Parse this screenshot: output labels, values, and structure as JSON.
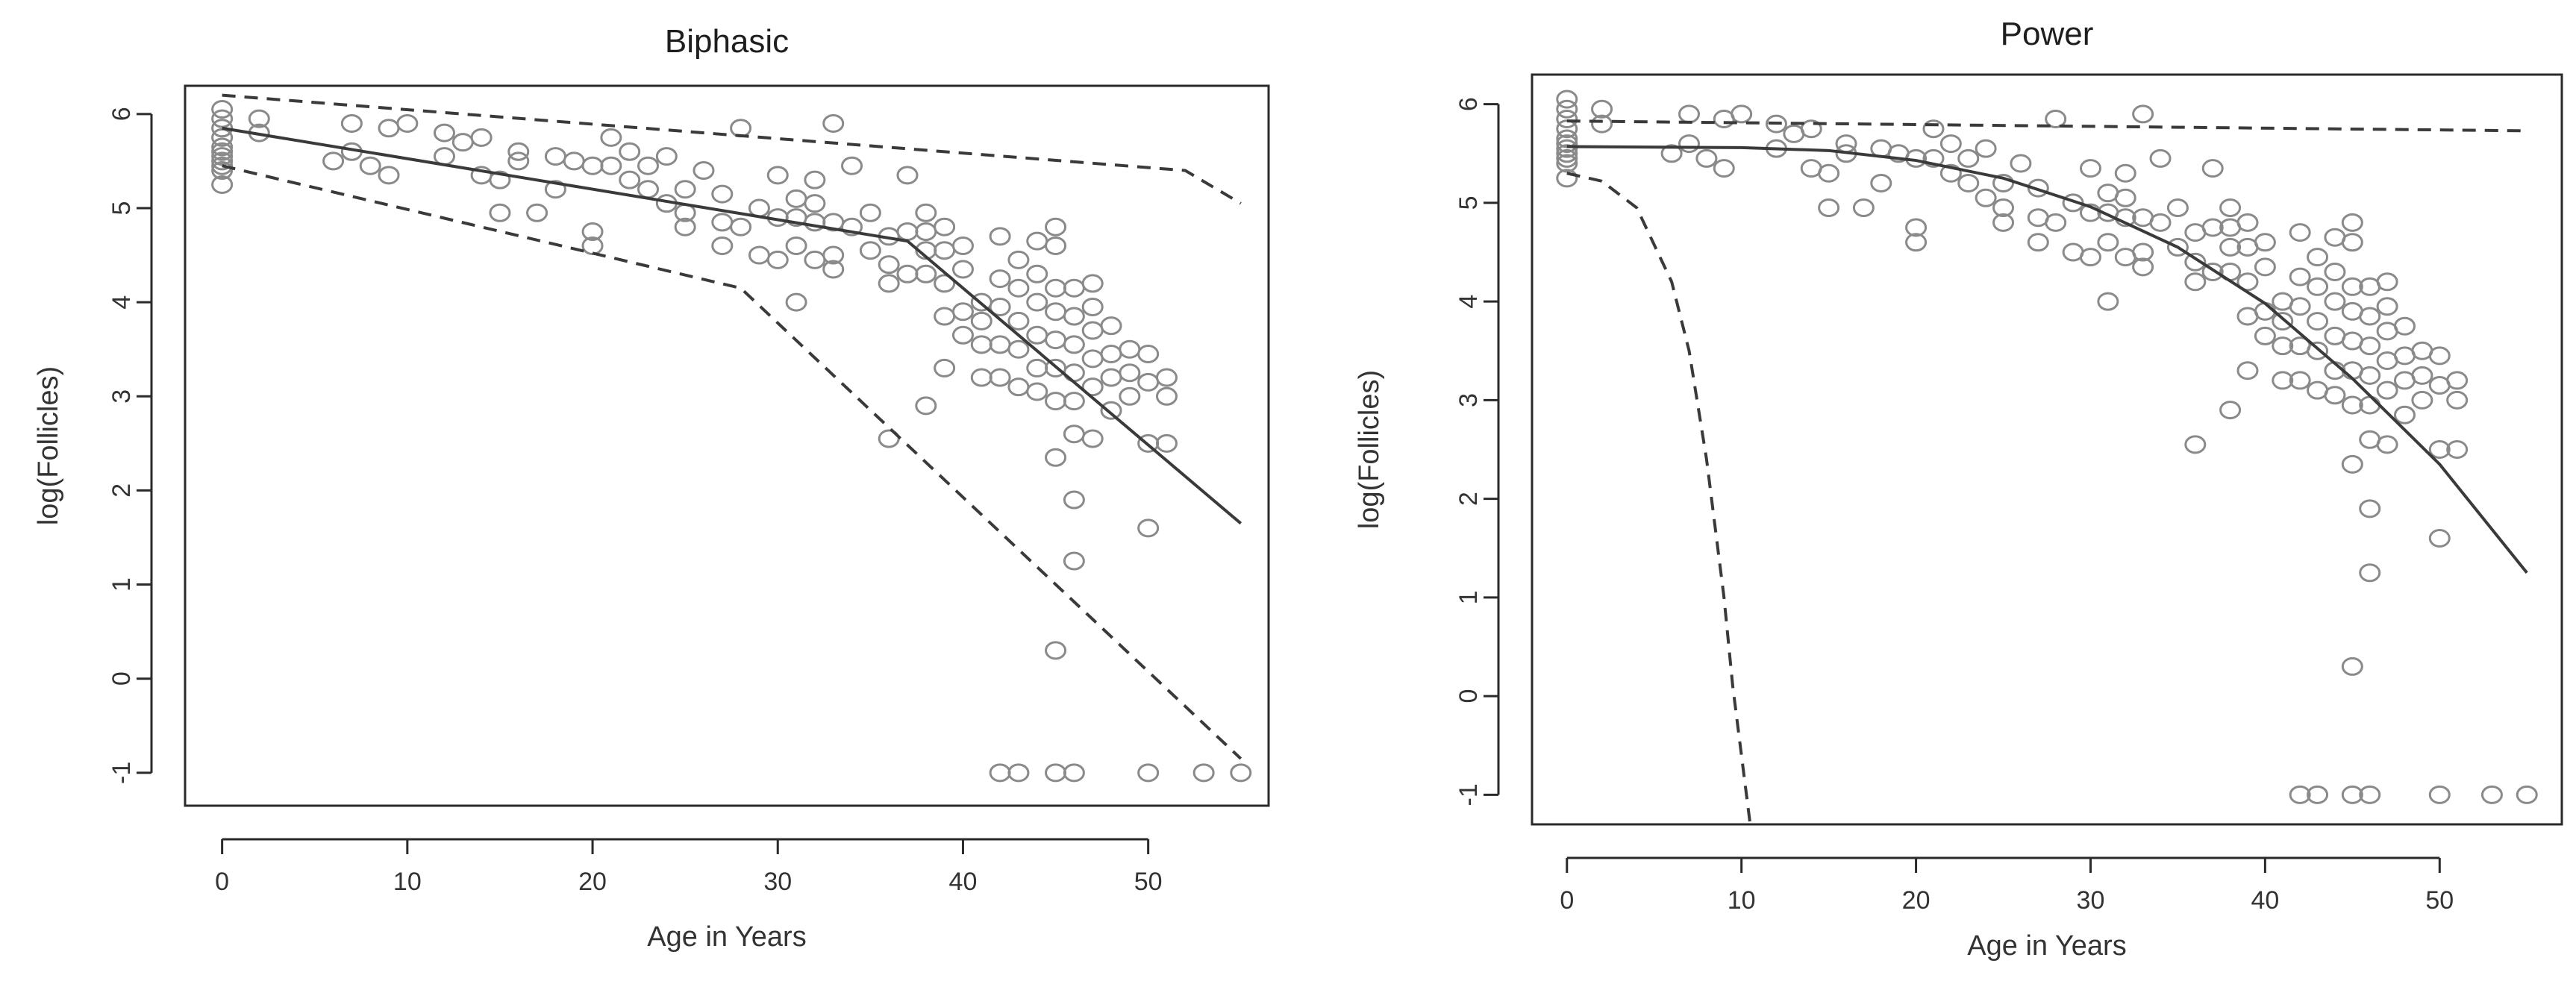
{
  "chart_data": [
    {
      "type": "scatter",
      "title": "Biphasic",
      "xlabel": "Age in Years",
      "ylabel": "log(Follicles)",
      "xlim": [
        -2,
        56.5
      ],
      "ylim": [
        -1.35,
        6.3
      ],
      "xticks": [
        0,
        10,
        20,
        30,
        40,
        50
      ],
      "yticks": [
        -1,
        0,
        1,
        2,
        3,
        4,
        5,
        6
      ],
      "grid": false,
      "legend": "none",
      "points": {
        "x": [
          0,
          0,
          0,
          0,
          0,
          0,
          0,
          0,
          0,
          0,
          0,
          2,
          2,
          6,
          7,
          7,
          8,
          9,
          9,
          10,
          12,
          12,
          13,
          14,
          14,
          15,
          15,
          16,
          16,
          17,
          18,
          18,
          19,
          20,
          20,
          20,
          21,
          21,
          22,
          22,
          23,
          23,
          24,
          24,
          25,
          25,
          25,
          26,
          27,
          27,
          27,
          28,
          28,
          29,
          29,
          30,
          30,
          30,
          31,
          31,
          31,
          31,
          32,
          32,
          32,
          32,
          33,
          33,
          33,
          33,
          34,
          34,
          35,
          35,
          36,
          36,
          36,
          37,
          37,
          37,
          38,
          38,
          38,
          38,
          39,
          39,
          39,
          39,
          39,
          40,
          40,
          40,
          40,
          41,
          41,
          41,
          41,
          42,
          42,
          42,
          42,
          42,
          43,
          43,
          43,
          43,
          43,
          44,
          44,
          44,
          44,
          44,
          44,
          45,
          45,
          45,
          45,
          45,
          45,
          45,
          45,
          46,
          46,
          46,
          46,
          46,
          46,
          46,
          47,
          47,
          47,
          47,
          47,
          47,
          48,
          48,
          48,
          48,
          49,
          49,
          49,
          50,
          50,
          50,
          50,
          51,
          51,
          51,
          36,
          38,
          45,
          46,
          42,
          43,
          45,
          46,
          50,
          53,
          55
        ],
        "y": [
          6.05,
          5.95,
          5.85,
          5.75,
          5.65,
          5.6,
          5.55,
          5.5,
          5.45,
          5.4,
          5.25,
          5.95,
          5.8,
          5.5,
          5.9,
          5.6,
          5.45,
          5.85,
          5.35,
          5.9,
          5.8,
          5.55,
          5.7,
          5.75,
          5.35,
          5.3,
          4.95,
          5.6,
          5.5,
          4.95,
          5.55,
          5.2,
          5.5,
          5.45,
          4.75,
          4.6,
          5.75,
          5.45,
          5.6,
          5.3,
          5.45,
          5.2,
          5.55,
          5.05,
          5.2,
          4.95,
          4.8,
          5.4,
          5.15,
          4.85,
          4.6,
          5.85,
          4.8,
          5.0,
          4.5,
          5.35,
          4.9,
          4.45,
          5.1,
          4.9,
          4.6,
          4.0,
          5.3,
          5.05,
          4.85,
          4.45,
          5.9,
          4.85,
          4.5,
          4.35,
          5.45,
          4.8,
          4.95,
          4.55,
          4.7,
          4.4,
          4.2,
          5.35,
          4.75,
          4.3,
          4.95,
          4.75,
          4.55,
          4.3,
          4.8,
          4.55,
          4.2,
          3.85,
          3.3,
          4.6,
          4.35,
          3.9,
          3.65,
          4.0,
          3.8,
          3.55,
          3.2,
          4.7,
          4.25,
          3.95,
          3.55,
          3.2,
          4.45,
          4.15,
          3.8,
          3.5,
          3.1,
          4.65,
          4.3,
          4.0,
          3.65,
          3.3,
          3.05,
          4.8,
          4.6,
          4.15,
          3.9,
          3.6,
          3.3,
          2.95,
          2.35,
          4.15,
          3.85,
          3.55,
          3.25,
          2.95,
          2.6,
          1.25,
          4.2,
          3.95,
          3.7,
          3.4,
          3.1,
          2.55,
          3.75,
          3.45,
          3.2,
          2.85,
          3.5,
          3.25,
          3.0,
          3.45,
          3.15,
          2.5,
          1.6,
          3.2,
          3.0,
          2.5,
          2.55,
          2.9,
          0.3,
          1.9,
          -1.0,
          -1.0,
          -1.0,
          -1.0,
          -1.0,
          -1.0,
          -1.0
        ]
      },
      "fit_line": {
        "x": [
          0,
          37,
          55
        ],
        "y": [
          5.85,
          4.65,
          1.65
        ]
      },
      "upper_band": {
        "x": [
          0,
          52,
          55
        ],
        "y": [
          6.2,
          5.4,
          5.05
        ]
      },
      "lower_band": {
        "x": [
          0,
          28,
          55
        ],
        "y": [
          5.45,
          4.15,
          -0.85
        ]
      }
    },
    {
      "type": "scatter",
      "title": "Power",
      "xlabel": "Age in Years",
      "ylabel": "log(Follicles)",
      "xlim": [
        -2,
        57
      ],
      "ylim": [
        -1.3,
        6.3
      ],
      "xticks": [
        0,
        10,
        20,
        30,
        40,
        50
      ],
      "yticks": [
        -1,
        0,
        1,
        2,
        3,
        4,
        5,
        6
      ],
      "grid": false,
      "legend": "none",
      "points": {
        "x": [
          0,
          0,
          0,
          0,
          0,
          0,
          0,
          0,
          0,
          0,
          0,
          2,
          2,
          6,
          7,
          7,
          8,
          9,
          9,
          10,
          12,
          12,
          13,
          14,
          14,
          15,
          15,
          16,
          16,
          17,
          18,
          18,
          19,
          20,
          20,
          20,
          21,
          21,
          22,
          22,
          23,
          23,
          24,
          24,
          25,
          25,
          25,
          26,
          27,
          27,
          27,
          28,
          28,
          29,
          29,
          30,
          30,
          30,
          31,
          31,
          31,
          31,
          32,
          32,
          32,
          32,
          33,
          33,
          33,
          33,
          34,
          34,
          35,
          35,
          36,
          36,
          36,
          37,
          37,
          37,
          38,
          38,
          38,
          38,
          39,
          39,
          39,
          39,
          39,
          40,
          40,
          40,
          40,
          41,
          41,
          41,
          41,
          42,
          42,
          42,
          42,
          42,
          43,
          43,
          43,
          43,
          43,
          44,
          44,
          44,
          44,
          44,
          44,
          45,
          45,
          45,
          45,
          45,
          45,
          45,
          45,
          46,
          46,
          46,
          46,
          46,
          46,
          46,
          47,
          47,
          47,
          47,
          47,
          47,
          48,
          48,
          48,
          48,
          49,
          49,
          49,
          50,
          50,
          50,
          50,
          51,
          51,
          51,
          36,
          38,
          45,
          46,
          42,
          43,
          45,
          46,
          50,
          53,
          55
        ],
        "y": [
          6.05,
          5.95,
          5.85,
          5.75,
          5.65,
          5.6,
          5.55,
          5.5,
          5.45,
          5.4,
          5.25,
          5.95,
          5.8,
          5.5,
          5.9,
          5.6,
          5.45,
          5.85,
          5.35,
          5.9,
          5.8,
          5.55,
          5.7,
          5.75,
          5.35,
          5.3,
          4.95,
          5.6,
          5.5,
          4.95,
          5.55,
          5.2,
          5.5,
          5.45,
          4.75,
          4.6,
          5.75,
          5.45,
          5.6,
          5.3,
          5.45,
          5.2,
          5.55,
          5.05,
          5.2,
          4.95,
          4.8,
          5.4,
          5.15,
          4.85,
          4.6,
          5.85,
          4.8,
          5.0,
          4.5,
          5.35,
          4.9,
          4.45,
          5.1,
          4.9,
          4.6,
          4.0,
          5.3,
          5.05,
          4.85,
          4.45,
          5.9,
          4.85,
          4.5,
          4.35,
          5.45,
          4.8,
          4.95,
          4.55,
          4.7,
          4.4,
          4.2,
          5.35,
          4.75,
          4.3,
          4.95,
          4.75,
          4.55,
          4.3,
          4.8,
          4.55,
          4.2,
          3.85,
          3.3,
          4.6,
          4.35,
          3.9,
          3.65,
          4.0,
          3.8,
          3.55,
          3.2,
          4.7,
          4.25,
          3.95,
          3.55,
          3.2,
          4.45,
          4.15,
          3.8,
          3.5,
          3.1,
          4.65,
          4.3,
          4.0,
          3.65,
          3.3,
          3.05,
          4.8,
          4.6,
          4.15,
          3.9,
          3.6,
          3.3,
          2.95,
          2.35,
          4.15,
          3.85,
          3.55,
          3.25,
          2.95,
          2.6,
          1.25,
          4.2,
          3.95,
          3.7,
          3.4,
          3.1,
          2.55,
          3.75,
          3.45,
          3.2,
          2.85,
          3.5,
          3.25,
          3.0,
          3.45,
          3.15,
          2.5,
          1.6,
          3.2,
          3.0,
          2.5,
          2.55,
          2.9,
          0.3,
          1.9,
          -1.0,
          -1.0,
          -1.0,
          -1.0,
          -1.0,
          -1.0,
          -1.0
        ]
      },
      "fit_line": {
        "x": [
          0,
          10,
          15,
          20,
          25,
          30,
          35,
          40,
          45,
          50,
          55
        ],
        "y": [
          5.57,
          5.56,
          5.53,
          5.43,
          5.25,
          4.96,
          4.55,
          3.98,
          3.22,
          2.35,
          1.25
        ]
      },
      "upper_band": {
        "x": [
          0,
          55
        ],
        "y": [
          5.83,
          5.73
        ]
      },
      "lower_band": {
        "x": [
          0,
          2,
          4,
          6,
          7,
          8,
          9,
          9.5,
          10,
          10.5
        ],
        "y": [
          5.3,
          5.22,
          4.95,
          4.2,
          3.5,
          2.4,
          1.0,
          0.1,
          -0.6,
          -1.3
        ]
      }
    }
  ]
}
